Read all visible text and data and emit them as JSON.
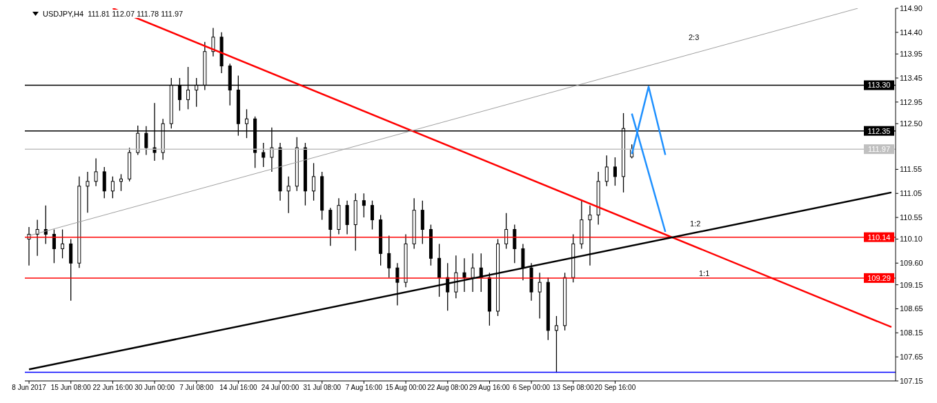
{
  "chart_data": {
    "type": "candlestick",
    "title": "USDJPY,H4  111.81 112.07 111.78 111.97",
    "color": "#000000",
    "categories": [
      "8 Jun 2017",
      null,
      null,
      null,
      null,
      "15 Jun 08:00",
      null,
      null,
      null,
      null,
      "22 Jun 16:00",
      null,
      null,
      null,
      null,
      "30 Jun 00:00",
      null,
      null,
      null,
      null,
      "7 Jul 08:00",
      null,
      null,
      null,
      null,
      "14 Jul 16:00",
      null,
      null,
      null,
      null,
      "24 Jul 00:00",
      null,
      null,
      null,
      null,
      "31 Jul 08:00",
      null,
      null,
      null,
      null,
      "7 Aug 16:00",
      null,
      null,
      null,
      null,
      "15 Aug 00:00",
      null,
      null,
      null,
      null,
      "22 Aug 08:00",
      null,
      null,
      null,
      null,
      "29 Aug 16:00",
      null,
      null,
      null,
      null,
      "6 Sep 00:00",
      null,
      null,
      null,
      null,
      "13 Sep 08:00",
      null,
      null,
      null,
      null,
      "20 Sep 16:00",
      null,
      null,
      null,
      null,
      null,
      null,
      null,
      null,
      null,
      null,
      null,
      null,
      null,
      null,
      null,
      null,
      null,
      null,
      null,
      null,
      null,
      null,
      null,
      null,
      null,
      null,
      null,
      null,
      null,
      null,
      null,
      null,
      null
    ],
    "ohlc": [
      [
        110.1,
        110.35,
        109.55,
        110.2
      ],
      [
        110.2,
        110.5,
        109.75,
        110.3
      ],
      [
        110.3,
        110.8,
        110.0,
        110.2
      ],
      [
        110.2,
        110.3,
        109.6,
        109.9
      ],
      [
        109.9,
        110.3,
        109.7,
        110.0
      ],
      [
        110.0,
        110.1,
        108.82,
        109.6
      ],
      [
        109.6,
        111.4,
        109.5,
        111.2
      ],
      [
        111.2,
        111.5,
        110.65,
        111.3
      ],
      [
        111.3,
        111.78,
        111.2,
        111.5
      ],
      [
        111.5,
        111.6,
        110.95,
        111.1
      ],
      [
        111.1,
        111.4,
        110.95,
        111.3
      ],
      [
        111.3,
        111.45,
        111.1,
        111.35
      ],
      [
        111.35,
        112.0,
        111.3,
        111.9
      ],
      [
        111.9,
        112.46,
        111.85,
        112.3
      ],
      [
        112.3,
        112.45,
        111.85,
        112.0
      ],
      [
        112.0,
        112.93,
        111.73,
        111.9
      ],
      [
        111.9,
        112.6,
        111.75,
        112.5
      ],
      [
        112.5,
        113.45,
        112.4,
        113.3
      ],
      [
        113.3,
        113.45,
        112.77,
        113.0
      ],
      [
        113.0,
        113.68,
        112.8,
        113.2
      ],
      [
        113.2,
        113.45,
        112.85,
        113.3
      ],
      [
        113.3,
        114.2,
        113.2,
        114.0
      ],
      [
        114.0,
        114.49,
        113.9,
        114.3
      ],
      [
        114.3,
        114.4,
        113.55,
        113.7
      ],
      [
        113.7,
        113.75,
        112.88,
        113.2
      ],
      [
        113.2,
        113.5,
        112.25,
        112.5
      ],
      [
        112.5,
        112.8,
        112.2,
        112.6
      ],
      [
        112.6,
        112.65,
        111.58,
        111.9
      ],
      [
        111.9,
        112.1,
        111.6,
        111.8
      ],
      [
        111.8,
        112.42,
        111.5,
        112.0
      ],
      [
        112.0,
        112.1,
        110.9,
        111.1
      ],
      [
        111.1,
        111.4,
        110.64,
        111.2
      ],
      [
        111.2,
        112.22,
        111.1,
        112.0
      ],
      [
        112.0,
        112.1,
        110.8,
        111.1
      ],
      [
        111.1,
        111.68,
        110.9,
        111.4
      ],
      [
        111.4,
        111.5,
        110.5,
        110.7
      ],
      [
        110.7,
        110.75,
        109.96,
        110.3
      ],
      [
        110.3,
        110.95,
        110.2,
        110.8
      ],
      [
        110.8,
        110.9,
        110.2,
        110.4
      ],
      [
        110.4,
        111.05,
        109.86,
        110.9
      ],
      [
        110.9,
        111.05,
        110.55,
        110.8
      ],
      [
        110.8,
        110.9,
        110.3,
        110.5
      ],
      [
        110.5,
        110.6,
        109.55,
        109.8
      ],
      [
        109.8,
        110.17,
        109.3,
        109.5
      ],
      [
        109.5,
        109.6,
        108.72,
        109.2
      ],
      [
        109.2,
        110.2,
        109.1,
        110.0
      ],
      [
        110.0,
        110.95,
        109.9,
        110.7
      ],
      [
        110.7,
        110.9,
        110.0,
        110.3
      ],
      [
        110.3,
        110.4,
        109.55,
        109.7
      ],
      [
        109.7,
        110.0,
        108.9,
        109.3
      ],
      [
        109.3,
        109.6,
        108.61,
        109.0
      ],
      [
        109.0,
        109.76,
        108.87,
        109.4
      ],
      [
        109.4,
        109.7,
        109.0,
        109.3
      ],
      [
        109.3,
        109.8,
        109.0,
        109.5
      ],
      [
        109.5,
        109.8,
        109.0,
        109.3
      ],
      [
        109.3,
        109.4,
        108.3,
        108.6
      ],
      [
        108.6,
        110.1,
        108.5,
        110.0
      ],
      [
        110.0,
        110.64,
        109.9,
        110.3
      ],
      [
        110.3,
        110.4,
        109.6,
        109.9
      ],
      [
        109.9,
        110.0,
        109.24,
        109.5
      ],
      [
        109.5,
        109.6,
        108.82,
        109.0
      ],
      [
        109.0,
        109.4,
        108.45,
        109.2
      ],
      [
        109.2,
        109.3,
        108.0,
        108.2
      ],
      [
        108.2,
        108.5,
        107.32,
        108.3
      ],
      [
        108.3,
        109.4,
        108.2,
        109.3
      ],
      [
        109.3,
        110.2,
        109.2,
        110.0
      ],
      [
        110.0,
        110.9,
        109.9,
        110.5
      ],
      [
        110.5,
        110.8,
        109.55,
        110.6
      ],
      [
        110.6,
        111.5,
        110.4,
        111.3
      ],
      [
        111.3,
        111.84,
        111.2,
        111.6
      ],
      [
        111.6,
        111.8,
        111.21,
        111.4
      ],
      [
        111.4,
        112.72,
        111.07,
        112.4
      ],
      [
        111.81,
        112.07,
        111.78,
        111.97
      ],
      null,
      null,
      null,
      null,
      null,
      null,
      null,
      null,
      null,
      null,
      null,
      null,
      null,
      null,
      null,
      null,
      null,
      null,
      null,
      null,
      null,
      null,
      null,
      null,
      null,
      null,
      null,
      null,
      null,
      null,
      null
    ],
    "series": [
      {
        "type": "line",
        "color": "#ff0000",
        "values": [
          null,
          null,
          null,
          null,
          null,
          null,
          null,
          null,
          null,
          null,
          114.9,
          null,
          null,
          null,
          null,
          null,
          null,
          null,
          null,
          null,
          null,
          null,
          null,
          null,
          null,
          null,
          null,
          null,
          null,
          null,
          null,
          null,
          null,
          null,
          null,
          null,
          null,
          null,
          null,
          null,
          null,
          null,
          null,
          null,
          null,
          null,
          null,
          null,
          null,
          null,
          null,
          null,
          null,
          null,
          null,
          null,
          null,
          null,
          null,
          null,
          null,
          null,
          null,
          null,
          null,
          null,
          null,
          null,
          null,
          null,
          null,
          null,
          null,
          null,
          null,
          null,
          null,
          null,
          null,
          null,
          null,
          null,
          null,
          null,
          null,
          null,
          null,
          null,
          null,
          null,
          null,
          null,
          null,
          null,
          null,
          null,
          null,
          null,
          null,
          null,
          null,
          null,
          null,
          108.27
        ]
      },
      {
        "type": "line",
        "color": "#000000",
        "values": [
          107.39,
          null,
          null,
          null,
          null,
          null,
          null,
          null,
          null,
          null,
          null,
          null,
          null,
          null,
          null,
          null,
          null,
          null,
          null,
          null,
          null,
          null,
          null,
          null,
          null,
          null,
          null,
          null,
          null,
          null,
          null,
          null,
          null,
          null,
          null,
          null,
          null,
          null,
          null,
          null,
          null,
          null,
          null,
          null,
          null,
          null,
          null,
          null,
          null,
          null,
          null,
          null,
          null,
          null,
          null,
          null,
          null,
          null,
          null,
          null,
          null,
          null,
          null,
          null,
          null,
          null,
          null,
          null,
          null,
          null,
          null,
          null,
          null,
          null,
          null,
          null,
          null,
          null,
          null,
          null,
          null,
          null,
          null,
          null,
          null,
          null,
          null,
          null,
          null,
          null,
          null,
          null,
          null,
          null,
          null,
          null,
          null,
          null,
          null,
          null,
          null,
          null,
          null,
          111.07
        ]
      },
      {
        "type": "line",
        "color": "#a0a0a0",
        "values": [
          110.17,
          null,
          null,
          null,
          null,
          null,
          null,
          null,
          null,
          null,
          null,
          null,
          null,
          null,
          null,
          null,
          null,
          null,
          null,
          null,
          null,
          null,
          null,
          null,
          null,
          null,
          null,
          null,
          null,
          null,
          null,
          null,
          null,
          null,
          null,
          null,
          null,
          null,
          null,
          null,
          null,
          null,
          null,
          null,
          null,
          null,
          null,
          null,
          null,
          null,
          null,
          null,
          null,
          null,
          null,
          null,
          null,
          null,
          null,
          null,
          null,
          null,
          null,
          null,
          null,
          null,
          null,
          null,
          null,
          null,
          null,
          null,
          null,
          null,
          null,
          null,
          null,
          null,
          null,
          null,
          null,
          null,
          null,
          null,
          null,
          null,
          null,
          null,
          null,
          null,
          null,
          null,
          null,
          null,
          null,
          null,
          null,
          null,
          null,
          114.9,
          null,
          null,
          null,
          null
        ]
      },
      {
        "type": "line",
        "color": "#1e90ff",
        "values": [
          null,
          null,
          null,
          null,
          null,
          null,
          null,
          null,
          null,
          null,
          null,
          null,
          null,
          null,
          null,
          null,
          null,
          null,
          null,
          null,
          null,
          null,
          null,
          null,
          null,
          null,
          null,
          null,
          null,
          null,
          null,
          null,
          null,
          null,
          null,
          null,
          null,
          null,
          null,
          null,
          null,
          null,
          null,
          null,
          null,
          null,
          null,
          null,
          null,
          null,
          null,
          null,
          null,
          null,
          null,
          null,
          null,
          null,
          null,
          null,
          null,
          null,
          null,
          null,
          null,
          null,
          null,
          null,
          null,
          null,
          null,
          null,
          112.71,
          null,
          null,
          null,
          110.25,
          null,
          null,
          null,
          null,
          null,
          null,
          null,
          null,
          null,
          null,
          null,
          null,
          null,
          null,
          null,
          null,
          null,
          null,
          null,
          null,
          null,
          null,
          null,
          null,
          null,
          null,
          null
        ]
      },
      {
        "type": "line",
        "color": "#1e90ff",
        "values": [
          null,
          null,
          null,
          null,
          null,
          null,
          null,
          null,
          null,
          null,
          null,
          null,
          null,
          null,
          null,
          null,
          null,
          null,
          null,
          null,
          null,
          null,
          null,
          null,
          null,
          null,
          null,
          null,
          null,
          null,
          null,
          null,
          null,
          null,
          null,
          null,
          null,
          null,
          null,
          null,
          null,
          null,
          null,
          null,
          null,
          null,
          null,
          null,
          null,
          null,
          null,
          null,
          null,
          null,
          null,
          null,
          null,
          null,
          null,
          null,
          null,
          null,
          null,
          null,
          null,
          null,
          null,
          null,
          null,
          null,
          null,
          null,
          111.87,
          null,
          113.27,
          null,
          111.85,
          null,
          null,
          null,
          null,
          null,
          null,
          null,
          null,
          null,
          null,
          null,
          null,
          null,
          null,
          null,
          null,
          null,
          null,
          null,
          null,
          null,
          null,
          null,
          null,
          null,
          null,
          null
        ]
      }
    ],
    "ref_lines": [
      {
        "axis": "y",
        "value": 113.3,
        "label": "113.30",
        "color": "#000000"
      },
      {
        "axis": "y",
        "value": 112.35,
        "label": "112.35",
        "color": "#000000"
      },
      {
        "axis": "y",
        "value": 111.97,
        "label": "111.97",
        "color": "#c0c0c0"
      },
      {
        "axis": "y",
        "value": 110.14,
        "label": "110.14",
        "color": "#ff0000"
      },
      {
        "axis": "y",
        "value": 109.29,
        "label": "109.29",
        "color": "#ff0000"
      },
      {
        "axis": "y",
        "value": 107.33,
        "color": "#0000ff"
      }
    ],
    "annotations": [
      "2:3",
      "1:2",
      "1:1"
    ],
    "ylim": [
      107.15,
      114.9
    ],
    "yticks": [
      {
        "value": 114.9,
        "label": "114.90"
      },
      {
        "value": 114.4,
        "label": "114.40"
      },
      {
        "value": 113.95,
        "label": "113.95"
      },
      {
        "value": 113.45,
        "label": "113.45"
      },
      {
        "value": 112.95,
        "label": "112.95"
      },
      {
        "value": 112.5,
        "label": "112.50"
      },
      {
        "value": 111.55,
        "label": "111.55"
      },
      {
        "value": 111.05,
        "label": "111.05"
      },
      {
        "value": 110.55,
        "label": "110.55"
      },
      {
        "value": 110.1,
        "label": "110.10"
      },
      {
        "value": 109.6,
        "label": "109.60"
      },
      {
        "value": 109.15,
        "label": "109.15"
      },
      {
        "value": 108.65,
        "label": "108.65"
      },
      {
        "value": 108.15,
        "label": "108.15"
      },
      {
        "value": 107.65,
        "label": "107.65"
      },
      {
        "value": 107.15,
        "label": "107.15"
      }
    ]
  }
}
